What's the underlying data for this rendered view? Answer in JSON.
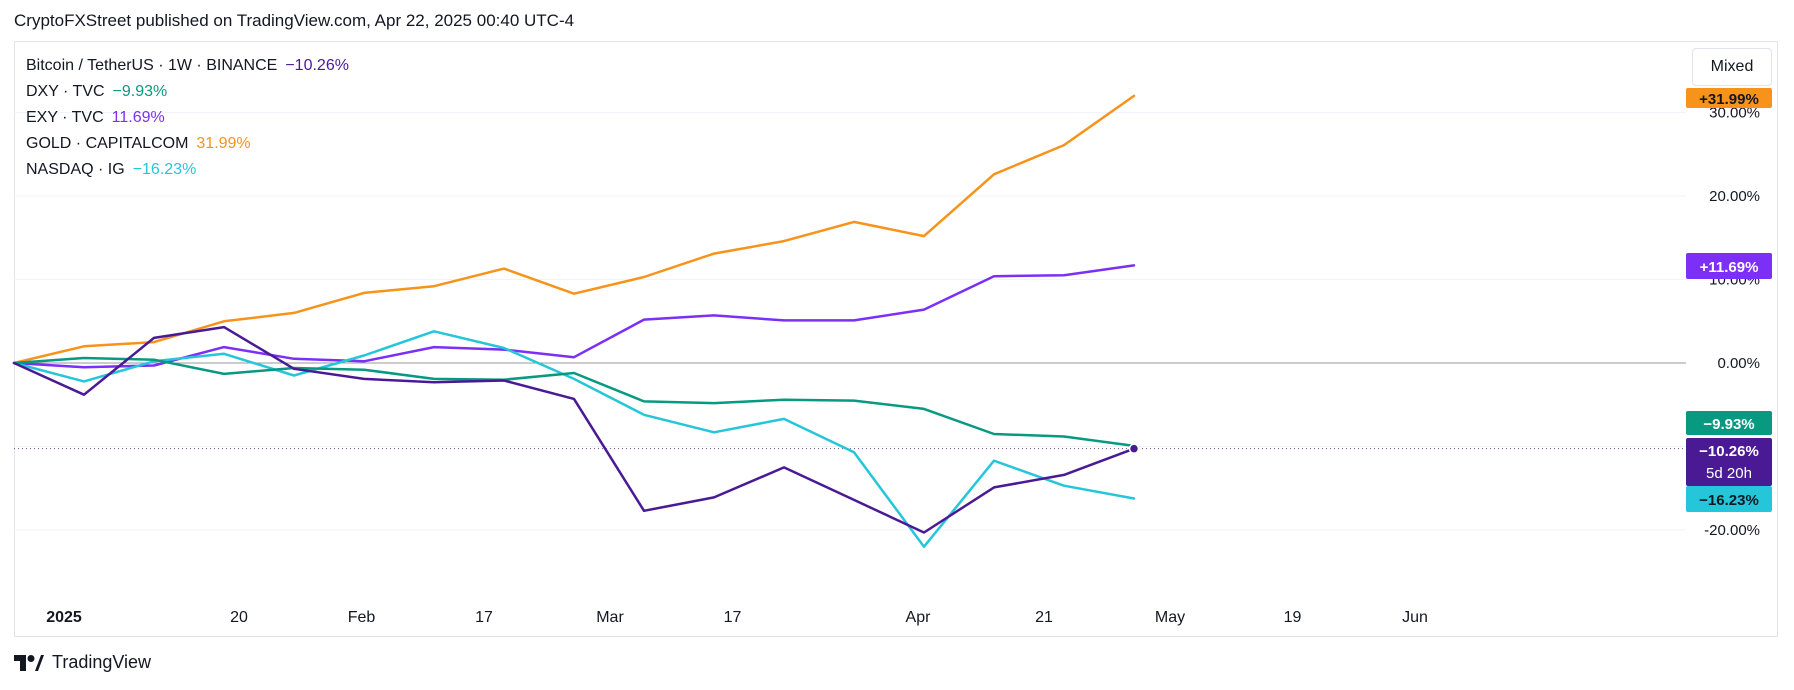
{
  "header": {
    "text": "CryptoFXStreet published on TradingView.com, Apr 22, 2025 00:40 UTC-4"
  },
  "toolbar": {
    "mixed_label": "Mixed"
  },
  "footer": {
    "brand": "TradingView"
  },
  "colors": {
    "btc": "#4a1a95",
    "dxy": "#089981",
    "exy": "#7b2ff7",
    "gold": "#f7931a",
    "nasdaq": "#26c6da"
  },
  "chart_data": {
    "type": "line",
    "x_tick_labels": [
      "2025",
      "20",
      "Feb",
      "17",
      "Mar",
      "17",
      "Apr",
      "21",
      "May",
      "19",
      "Jun"
    ],
    "y_tick_labels": [
      "30.00%",
      "20.00%",
      "10.00%",
      "0.00%",
      "-20.00%"
    ],
    "ylim": [
      -28,
      33
    ],
    "grid": true,
    "x": [
      "Dec 30",
      "Jan 6",
      "Jan 13",
      "Jan 20",
      "Jan 27",
      "Feb 3",
      "Feb 10",
      "Feb 17",
      "Feb 24",
      "Mar 3",
      "Mar 10",
      "Mar 17",
      "Mar 24",
      "Mar 31",
      "Apr 7",
      "Apr 14",
      "Apr 21"
    ],
    "countdown": "5d 20h",
    "series": [
      {
        "name": "Bitcoin / TetherUS · 1W · BINANCE",
        "key": "btc",
        "last_label": "−10.26%",
        "values": [
          0,
          -3.8,
          3.0,
          4.3,
          -0.7,
          -1.9,
          -2.3,
          -2.1,
          -4.3,
          -17.7,
          -16.1,
          -12.5,
          -16.4,
          -20.3,
          -14.9,
          -13.4,
          -10.26
        ]
      },
      {
        "name": "DXY · TVC",
        "key": "dxy",
        "last_label": "−9.93%",
        "values": [
          0,
          0.6,
          0.4,
          -1.3,
          -0.6,
          -0.8,
          -1.9,
          -2.0,
          -1.2,
          -4.6,
          -4.8,
          -4.4,
          -4.5,
          -5.5,
          -8.5,
          -8.8,
          -9.93
        ]
      },
      {
        "name": "EXY · TVC",
        "key": "exy",
        "last_label": "11.69%",
        "values": [
          0,
          -0.5,
          -0.3,
          1.9,
          0.5,
          0.2,
          1.9,
          1.6,
          0.7,
          5.2,
          5.7,
          5.1,
          5.1,
          6.4,
          10.4,
          10.5,
          11.69
        ]
      },
      {
        "name": "GOLD · CAPITALCOM",
        "key": "gold",
        "last_label": "31.99%",
        "values": [
          0,
          2.0,
          2.5,
          5.0,
          6.0,
          8.4,
          9.2,
          11.3,
          8.3,
          10.3,
          13.1,
          14.6,
          16.9,
          15.2,
          22.6,
          26.1,
          31.99
        ]
      },
      {
        "name": "NASDAQ · IG",
        "key": "nasdaq",
        "last_label": "−16.23%",
        "values": [
          0,
          -2.2,
          0.2,
          1.1,
          -1.5,
          0.9,
          3.8,
          1.8,
          -1.9,
          -6.2,
          -8.3,
          -6.7,
          -10.7,
          -22.0,
          -11.7,
          -14.7,
          -16.23
        ]
      }
    ]
  },
  "legend": {
    "rows": [
      {
        "name": "Bitcoin / TetherUS · 1W · BINANCE",
        "value": "−10.26%"
      },
      {
        "name": "DXY · TVC",
        "value": "−9.93%"
      },
      {
        "name": "EXY · TVC",
        "value": "11.69%"
      },
      {
        "name": "GOLD · CAPITALCOM",
        "value": "31.99%"
      },
      {
        "name": "NASDAQ · IG",
        "value": "−16.23%"
      }
    ]
  },
  "price_labels": {
    "gold": "+31.99%",
    "exy": "+11.69%",
    "dxy": "−9.93%",
    "btc": "−10.26%",
    "btc_countdown": "5d 20h",
    "nasdaq": "−16.23%"
  }
}
